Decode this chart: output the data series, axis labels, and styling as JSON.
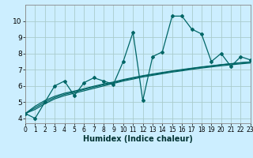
{
  "title": "",
  "xlabel": "Humidex (Indice chaleur)",
  "background_color": "#cceeff",
  "grid_color": "#aacccc",
  "line_color": "#006666",
  "x_data": [
    0,
    1,
    2,
    3,
    4,
    5,
    6,
    7,
    8,
    9,
    10,
    11,
    12,
    13,
    14,
    15,
    16,
    17,
    18,
    19,
    20,
    21,
    22,
    23
  ],
  "y_main": [
    4.3,
    4.0,
    5.0,
    6.0,
    6.3,
    5.4,
    6.2,
    6.5,
    6.3,
    6.1,
    7.5,
    9.3,
    5.1,
    7.8,
    8.1,
    10.3,
    10.3,
    9.5,
    9.2,
    7.5,
    8.0,
    7.2,
    7.8,
    7.6
  ],
  "y_trend1": [
    4.3,
    4.55,
    4.9,
    5.2,
    5.4,
    5.55,
    5.7,
    5.85,
    6.0,
    6.15,
    6.3,
    6.42,
    6.55,
    6.65,
    6.75,
    6.85,
    6.93,
    7.02,
    7.1,
    7.17,
    7.24,
    7.3,
    7.36,
    7.41
  ],
  "y_trend2": [
    4.3,
    4.65,
    5.0,
    5.28,
    5.48,
    5.62,
    5.78,
    5.93,
    6.07,
    6.2,
    6.35,
    6.48,
    6.6,
    6.7,
    6.8,
    6.9,
    6.98,
    7.07,
    7.15,
    7.22,
    7.3,
    7.36,
    7.42,
    7.47
  ],
  "y_trend3": [
    4.3,
    4.75,
    5.1,
    5.36,
    5.55,
    5.68,
    5.83,
    5.98,
    6.12,
    6.24,
    6.39,
    6.51,
    6.63,
    6.73,
    6.83,
    6.92,
    7.01,
    7.09,
    7.17,
    7.24,
    7.31,
    7.37,
    7.43,
    7.48
  ],
  "xlim": [
    0,
    23
  ],
  "ylim": [
    3.7,
    11.0
  ],
  "yticks": [
    4,
    5,
    6,
    7,
    8,
    9,
    10
  ],
  "xticks": [
    0,
    1,
    2,
    3,
    4,
    5,
    6,
    7,
    8,
    9,
    10,
    11,
    12,
    13,
    14,
    15,
    16,
    17,
    18,
    19,
    20,
    21,
    22,
    23
  ],
  "xlabel_fontsize": 7,
  "tick_fontsize": 5.5,
  "ytick_fontsize": 6.5
}
